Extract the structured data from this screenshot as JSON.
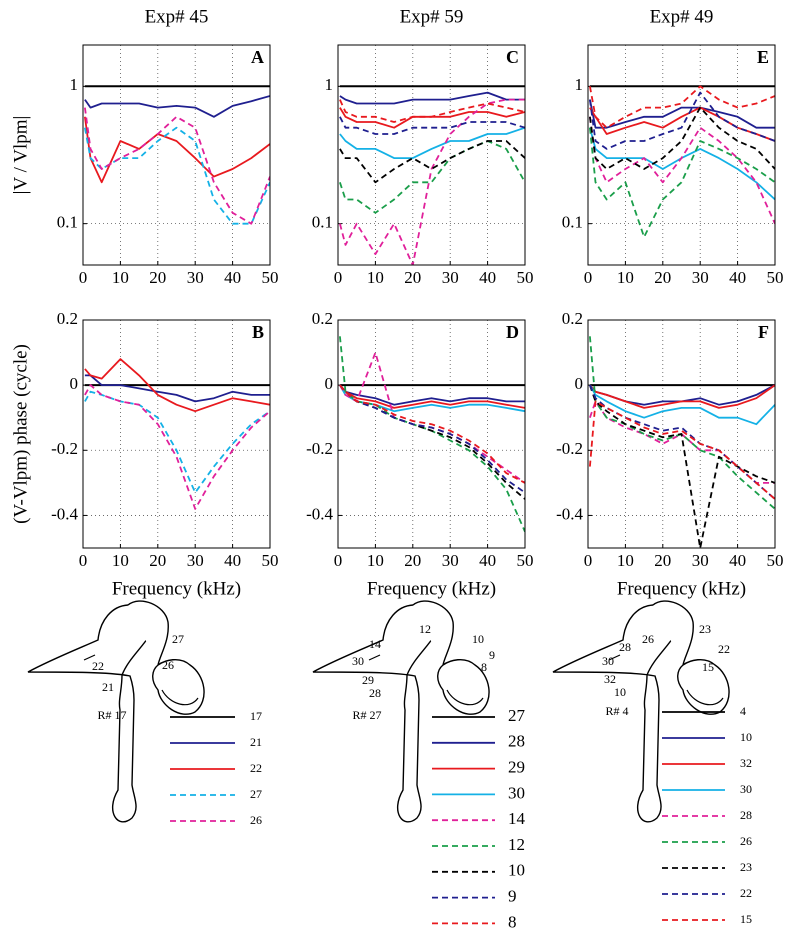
{
  "chart_data": [
    {
      "type": "line",
      "title": "Exp# 45",
      "panel": "A",
      "ylabel": "|V / Vlpm|",
      "log_y": true,
      "grid": true,
      "xlim": [
        0,
        50
      ],
      "xticks": [
        0,
        10,
        20,
        30,
        40,
        50
      ],
      "ylim": [
        0.05,
        2
      ],
      "yticks": [
        0.1,
        1
      ],
      "x": [
        0.5,
        2,
        5,
        10,
        15,
        20,
        25,
        30,
        35,
        40,
        45,
        50
      ],
      "series": [
        {
          "name": "17",
          "color": "#000000",
          "dashed": false,
          "values": [
            1,
            1,
            1,
            1,
            1,
            1,
            1,
            1,
            1,
            1,
            1,
            1
          ]
        },
        {
          "name": "21",
          "color": "#1f1f8f",
          "dashed": false,
          "values": [
            0.8,
            0.7,
            0.75,
            0.75,
            0.75,
            0.7,
            0.72,
            0.7,
            0.6,
            0.72,
            0.78,
            0.85
          ]
        },
        {
          "name": "22",
          "color": "#e8191e",
          "dashed": false,
          "values": [
            0.6,
            0.3,
            0.2,
            0.4,
            0.35,
            0.45,
            0.4,
            0.3,
            0.22,
            0.25,
            0.3,
            0.38
          ]
        },
        {
          "name": "27",
          "color": "#14b1e6",
          "dashed": true,
          "values": [
            0.5,
            0.3,
            0.25,
            0.3,
            0.3,
            0.4,
            0.5,
            0.4,
            0.15,
            0.1,
            0.1,
            0.2
          ]
        },
        {
          "name": "26",
          "color": "#e0209a",
          "dashed": true,
          "values": [
            0.7,
            0.35,
            0.25,
            0.3,
            0.35,
            0.45,
            0.6,
            0.5,
            0.2,
            0.12,
            0.1,
            0.22
          ]
        }
      ]
    },
    {
      "type": "line",
      "title": "Exp# 59",
      "panel": "C",
      "log_y": true,
      "grid": true,
      "xlim": [
        0,
        50
      ],
      "xticks": [
        0,
        10,
        20,
        30,
        40,
        50
      ],
      "ylim": [
        0.05,
        2
      ],
      "yticks": [
        0.1,
        1
      ],
      "x": [
        0.5,
        2,
        5,
        10,
        15,
        20,
        25,
        30,
        35,
        40,
        45,
        50
      ],
      "series": [
        {
          "name": "27",
          "color": "#000000",
          "dashed": false,
          "values": [
            1,
            1,
            1,
            1,
            1,
            1,
            1,
            1,
            1,
            1,
            1,
            1
          ]
        },
        {
          "name": "28",
          "color": "#1f1f8f",
          "dashed": false,
          "values": [
            0.85,
            0.8,
            0.75,
            0.75,
            0.75,
            0.8,
            0.8,
            0.8,
            0.85,
            0.9,
            0.8,
            0.8
          ]
        },
        {
          "name": "29",
          "color": "#e8191e",
          "dashed": false,
          "values": [
            0.7,
            0.6,
            0.55,
            0.55,
            0.5,
            0.6,
            0.6,
            0.6,
            0.65,
            0.65,
            0.6,
            0.65
          ]
        },
        {
          "name": "30",
          "color": "#14b1e6",
          "dashed": false,
          "values": [
            0.45,
            0.4,
            0.35,
            0.35,
            0.3,
            0.3,
            0.35,
            0.4,
            0.4,
            0.45,
            0.45,
            0.5
          ]
        },
        {
          "name": "14",
          "color": "#e0209a",
          "dashed": true,
          "values": [
            0.1,
            0.07,
            0.1,
            0.06,
            0.1,
            0.05,
            0.25,
            0.45,
            0.6,
            0.75,
            0.8,
            0.8
          ]
        },
        {
          "name": "12",
          "color": "#1a9e4a",
          "dashed": true,
          "values": [
            0.2,
            0.15,
            0.15,
            0.12,
            0.15,
            0.2,
            0.2,
            0.3,
            0.35,
            0.4,
            0.35,
            0.2
          ]
        },
        {
          "name": "10",
          "color": "#000000",
          "dashed": true,
          "values": [
            0.35,
            0.3,
            0.3,
            0.2,
            0.25,
            0.3,
            0.25,
            0.3,
            0.35,
            0.4,
            0.4,
            0.3
          ]
        },
        {
          "name": "9",
          "color": "#1f1f8f",
          "dashed": true,
          "values": [
            0.6,
            0.5,
            0.5,
            0.45,
            0.45,
            0.5,
            0.5,
            0.5,
            0.55,
            0.55,
            0.55,
            0.5
          ]
        },
        {
          "name": "8",
          "color": "#e8191e",
          "dashed": true,
          "values": [
            0.8,
            0.65,
            0.6,
            0.6,
            0.55,
            0.6,
            0.6,
            0.65,
            0.7,
            0.75,
            0.7,
            0.65
          ]
        }
      ]
    },
    {
      "type": "line",
      "title": "Exp# 49",
      "panel": "E",
      "log_y": true,
      "grid": true,
      "xlim": [
        0,
        50
      ],
      "xticks": [
        0,
        10,
        20,
        30,
        40,
        50
      ],
      "ylim": [
        0.05,
        2
      ],
      "yticks": [
        0.1,
        1
      ],
      "x": [
        0.5,
        2,
        5,
        10,
        15,
        20,
        25,
        30,
        35,
        40,
        45,
        50
      ],
      "series": [
        {
          "name": "4",
          "color": "#000000",
          "dashed": false,
          "values": [
            1,
            1,
            1,
            1,
            1,
            1,
            1,
            1,
            1,
            1,
            1,
            1
          ]
        },
        {
          "name": "10",
          "color": "#1f1f8f",
          "dashed": false,
          "values": [
            0.8,
            0.5,
            0.5,
            0.55,
            0.6,
            0.6,
            0.7,
            0.7,
            0.65,
            0.6,
            0.5,
            0.5
          ]
        },
        {
          "name": "32",
          "color": "#e8191e",
          "dashed": false,
          "values": [
            0.7,
            0.6,
            0.45,
            0.5,
            0.55,
            0.5,
            0.6,
            0.7,
            0.6,
            0.5,
            0.45,
            0.4
          ]
        },
        {
          "name": "30",
          "color": "#14b1e6",
          "dashed": false,
          "values": [
            0.5,
            0.35,
            0.3,
            0.3,
            0.3,
            0.25,
            0.3,
            0.35,
            0.3,
            0.25,
            0.2,
            0.15
          ]
        },
        {
          "name": "28",
          "color": "#e0209a",
          "dashed": true,
          "values": [
            0.6,
            0.3,
            0.2,
            0.25,
            0.3,
            0.2,
            0.3,
            0.5,
            0.4,
            0.3,
            0.2,
            0.1
          ]
        },
        {
          "name": "26",
          "color": "#1a9e4a",
          "dashed": true,
          "values": [
            0.5,
            0.2,
            0.15,
            0.2,
            0.08,
            0.15,
            0.2,
            0.4,
            0.35,
            0.3,
            0.25,
            0.2
          ]
        },
        {
          "name": "23",
          "color": "#000000",
          "dashed": true,
          "values": [
            0.6,
            0.3,
            0.25,
            0.3,
            0.25,
            0.3,
            0.4,
            0.7,
            0.5,
            0.4,
            0.35,
            0.25
          ]
        },
        {
          "name": "22",
          "color": "#1f1f8f",
          "dashed": true,
          "values": [
            0.8,
            0.4,
            0.35,
            0.4,
            0.4,
            0.45,
            0.5,
            0.9,
            0.6,
            0.5,
            0.45,
            0.4
          ]
        },
        {
          "name": "15",
          "color": "#e8191e",
          "dashed": true,
          "values": [
            1.0,
            0.6,
            0.5,
            0.6,
            0.7,
            0.7,
            0.75,
            1.0,
            0.8,
            0.7,
            0.75,
            0.85
          ]
        }
      ]
    },
    {
      "type": "line",
      "panel": "B",
      "ylabel": "(V-Vlpm) phase (cycle)",
      "xlabel": "Frequency (kHz)",
      "grid": true,
      "xlim": [
        0,
        50
      ],
      "xticks": [
        0,
        10,
        20,
        30,
        40,
        50
      ],
      "ylim": [
        -0.5,
        0.2
      ],
      "yticks": [
        -0.4,
        -0.2,
        0,
        0.2
      ],
      "x": [
        0.5,
        2,
        5,
        10,
        15,
        20,
        25,
        30,
        35,
        40,
        45,
        50
      ],
      "series": [
        {
          "color": "#000000",
          "dashed": false,
          "values": [
            0,
            0,
            0,
            0,
            0,
            0,
            0,
            0,
            0,
            0,
            0,
            0
          ]
        },
        {
          "color": "#1f1f8f",
          "dashed": false,
          "values": [
            0.03,
            0.03,
            0.0,
            0.0,
            -0.01,
            -0.02,
            -0.03,
            -0.05,
            -0.04,
            -0.02,
            -0.03,
            -0.03
          ]
        },
        {
          "color": "#e8191e",
          "dashed": false,
          "values": [
            0.05,
            0.03,
            0.02,
            0.08,
            0.03,
            -0.03,
            -0.06,
            -0.08,
            -0.06,
            -0.04,
            -0.05,
            -0.06
          ]
        },
        {
          "color": "#14b1e6",
          "dashed": true,
          "values": [
            -0.05,
            -0.02,
            -0.03,
            -0.05,
            -0.06,
            -0.1,
            -0.2,
            -0.33,
            -0.25,
            -0.18,
            -0.12,
            -0.08
          ]
        },
        {
          "color": "#e0209a",
          "dashed": true,
          "values": [
            -0.03,
            0.0,
            -0.03,
            -0.05,
            -0.06,
            -0.12,
            -0.22,
            -0.38,
            -0.28,
            -0.2,
            -0.13,
            -0.08
          ]
        }
      ]
    },
    {
      "type": "line",
      "panel": "D",
      "xlabel": "Frequency (kHz)",
      "grid": true,
      "xlim": [
        0,
        50
      ],
      "xticks": [
        0,
        10,
        20,
        30,
        40,
        50
      ],
      "ylim": [
        -0.5,
        0.2
      ],
      "yticks": [
        -0.4,
        -0.2,
        0,
        0.2
      ],
      "x": [
        0.5,
        2,
        5,
        10,
        15,
        20,
        25,
        30,
        35,
        40,
        45,
        50
      ],
      "series": [
        {
          "color": "#000000",
          "dashed": false,
          "values": [
            0,
            0,
            0,
            0,
            0,
            0,
            0,
            0,
            0,
            0,
            0,
            0
          ]
        },
        {
          "color": "#1f1f8f",
          "dashed": false,
          "values": [
            0,
            -0.02,
            -0.03,
            -0.04,
            -0.06,
            -0.05,
            -0.04,
            -0.05,
            -0.04,
            -0.04,
            -0.05,
            -0.05
          ]
        },
        {
          "color": "#e8191e",
          "dashed": false,
          "values": [
            0,
            -0.02,
            -0.04,
            -0.05,
            -0.07,
            -0.06,
            -0.05,
            -0.06,
            -0.05,
            -0.05,
            -0.06,
            -0.07
          ]
        },
        {
          "color": "#14b1e6",
          "dashed": false,
          "values": [
            0,
            -0.03,
            -0.05,
            -0.06,
            -0.08,
            -0.07,
            -0.06,
            -0.07,
            -0.06,
            -0.06,
            -0.07,
            -0.08
          ]
        },
        {
          "color": "#e0209a",
          "dashed": true,
          "values": [
            0,
            -0.03,
            -0.05,
            0.1,
            -0.1,
            -0.12,
            -0.13,
            -0.15,
            -0.18,
            -0.22,
            -0.26,
            -0.3
          ]
        },
        {
          "color": "#1a9e4a",
          "dashed": true,
          "values": [
            0.15,
            -0.02,
            -0.05,
            -0.06,
            -0.1,
            -0.12,
            -0.14,
            -0.17,
            -0.2,
            -0.25,
            -0.32,
            -0.45
          ]
        },
        {
          "color": "#000000",
          "dashed": true,
          "values": [
            0,
            -0.02,
            -0.05,
            -0.07,
            -0.1,
            -0.12,
            -0.14,
            -0.16,
            -0.19,
            -0.24,
            -0.3,
            -0.35
          ]
        },
        {
          "color": "#1f1f8f",
          "dashed": true,
          "values": [
            0,
            -0.02,
            -0.05,
            -0.07,
            -0.1,
            -0.12,
            -0.13,
            -0.15,
            -0.18,
            -0.23,
            -0.29,
            -0.33
          ]
        },
        {
          "color": "#e8191e",
          "dashed": true,
          "values": [
            0,
            -0.02,
            -0.05,
            -0.06,
            -0.09,
            -0.11,
            -0.12,
            -0.14,
            -0.17,
            -0.21,
            -0.27,
            -0.3
          ]
        }
      ]
    },
    {
      "type": "line",
      "panel": "F",
      "xlabel": "Frequency (kHz)",
      "grid": true,
      "xlim": [
        0,
        50
      ],
      "xticks": [
        0,
        10,
        20,
        30,
        40,
        50
      ],
      "ylim": [
        -0.5,
        0.2
      ],
      "yticks": [
        -0.4,
        -0.2,
        0,
        0.2
      ],
      "x": [
        0.5,
        2,
        5,
        10,
        15,
        20,
        25,
        30,
        35,
        40,
        45,
        50
      ],
      "series": [
        {
          "color": "#000000",
          "dashed": false,
          "values": [
            0,
            0,
            0,
            0,
            0,
            0,
            0,
            0,
            0,
            0,
            0,
            0
          ]
        },
        {
          "color": "#1f1f8f",
          "dashed": false,
          "values": [
            0,
            -0.02,
            -0.03,
            -0.05,
            -0.06,
            -0.05,
            -0.05,
            -0.04,
            -0.06,
            -0.05,
            -0.03,
            0
          ]
        },
        {
          "color": "#e8191e",
          "dashed": false,
          "values": [
            0,
            -0.02,
            -0.03,
            -0.05,
            -0.07,
            -0.06,
            -0.05,
            -0.05,
            -0.07,
            -0.06,
            -0.04,
            0
          ]
        },
        {
          "color": "#14b1e6",
          "dashed": false,
          "values": [
            0,
            -0.03,
            -0.05,
            -0.08,
            -0.1,
            -0.08,
            -0.07,
            -0.07,
            -0.1,
            -0.1,
            -0.12,
            -0.06
          ]
        },
        {
          "color": "#e0209a",
          "dashed": true,
          "values": [
            -0.1,
            -0.05,
            -0.1,
            -0.13,
            -0.15,
            -0.18,
            -0.15,
            -0.2,
            -0.2,
            -0.25,
            -0.3,
            -0.3
          ]
        },
        {
          "color": "#1a9e4a",
          "dashed": true,
          "values": [
            0.15,
            -0.05,
            -0.1,
            -0.12,
            -0.15,
            -0.17,
            -0.15,
            -0.2,
            -0.22,
            -0.28,
            -0.33,
            -0.38
          ]
        },
        {
          "color": "#000000",
          "dashed": true,
          "values": [
            0,
            -0.05,
            -0.08,
            -0.12,
            -0.14,
            -0.16,
            -0.15,
            -0.5,
            -0.22,
            -0.25,
            -0.28,
            -0.3
          ]
        },
        {
          "color": "#1f1f8f",
          "dashed": true,
          "values": [
            0,
            -0.04,
            -0.07,
            -0.1,
            -0.12,
            -0.14,
            -0.13,
            -0.18,
            -0.2,
            -0.25,
            -0.3,
            -0.35
          ]
        },
        {
          "color": "#e8191e",
          "dashed": true,
          "values": [
            -0.25,
            -0.05,
            -0.07,
            -0.1,
            -0.13,
            -0.15,
            -0.14,
            -0.18,
            -0.2,
            -0.25,
            -0.3,
            -0.35
          ]
        }
      ]
    }
  ],
  "diagrams": [
    {
      "record": "R# 17",
      "points": [
        "27",
        "22",
        "26",
        "21"
      ]
    },
    {
      "record": "R# 27",
      "points": [
        "12",
        "10",
        "14",
        "30",
        "9",
        "8",
        "29",
        "28"
      ]
    },
    {
      "record": "R# 4",
      "points": [
        "23",
        "28",
        "26",
        "22",
        "30",
        "15",
        "32",
        "10"
      ]
    }
  ]
}
